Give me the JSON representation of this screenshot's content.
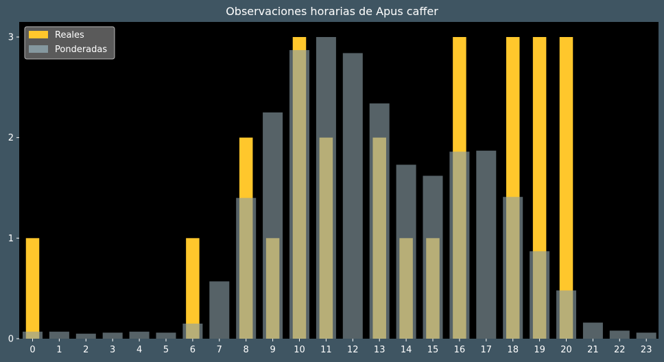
{
  "chart_data": {
    "type": "bar",
    "title": "Observaciones horarias de Apus caffer",
    "xlabel": "",
    "ylabel": "",
    "categories": [
      "0",
      "1",
      "2",
      "3",
      "4",
      "5",
      "6",
      "7",
      "8",
      "9",
      "10",
      "11",
      "12",
      "13",
      "14",
      "15",
      "16",
      "17",
      "18",
      "19",
      "20",
      "21",
      "22",
      "23"
    ],
    "series": [
      {
        "name": "Reales",
        "color": "#ffc72c",
        "values": [
          1,
          0,
          0,
          0,
          0,
          0,
          1,
          0,
          2,
          1,
          3,
          2,
          0,
          2,
          1,
          1,
          3,
          0,
          3,
          3,
          3,
          0,
          0,
          0
        ]
      },
      {
        "name": "Ponderadas",
        "color": "#8a9ea6",
        "values": [
          0.07,
          0.07,
          0.05,
          0.06,
          0.07,
          0.06,
          0.15,
          0.57,
          1.4,
          2.25,
          2.87,
          3.0,
          2.84,
          2.34,
          1.73,
          1.62,
          1.86,
          1.87,
          1.41,
          0.87,
          0.48,
          0.16,
          0.08,
          0.06
        ]
      }
    ],
    "yticks": [
      "0",
      "1",
      "2",
      "3"
    ],
    "ylim": [
      0,
      3.15
    ],
    "grid": false,
    "legend_position": "top-left",
    "colors": {
      "background": "#3f5562",
      "plot_background": "#000000",
      "text": "#ffffff"
    }
  }
}
